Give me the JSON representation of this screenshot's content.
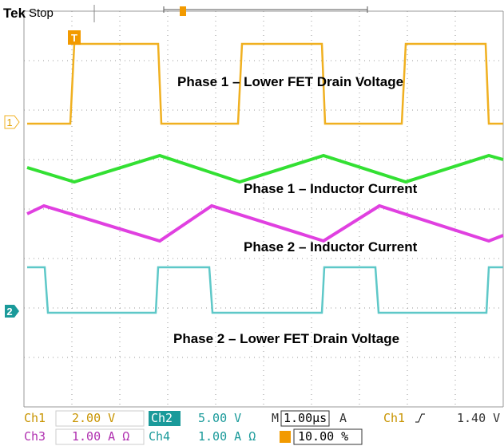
{
  "header": {
    "brand": "Tek",
    "state": "Stop"
  },
  "markers": {
    "ch1": "1",
    "ch2": "2",
    "trigger": "T"
  },
  "traces": {
    "phase1_drain": "Phase 1 – Lower FET Drain Voltage",
    "phase1_current": "Phase 1 – Inductor Current",
    "phase2_current": "Phase 2 – Inductor Current",
    "phase2_drain": "Phase 2 – Lower FET Drain Voltage"
  },
  "status": {
    "row1": {
      "ch1": "Ch1",
      "ch1_scale": "2.00 V",
      "ch2": "Ch2",
      "ch2_scale": "5.00 V",
      "m": "M",
      "timebase": "1.00µs",
      "a": "A",
      "trig_src": "Ch1",
      "trig_level": "1.40 V"
    },
    "row2": {
      "ch3": "Ch3",
      "ch3_scale": "1.00 A Ω",
      "ch4": "Ch4",
      "ch4_scale": "1.00 A Ω",
      "position": "10.00 %"
    }
  }
}
